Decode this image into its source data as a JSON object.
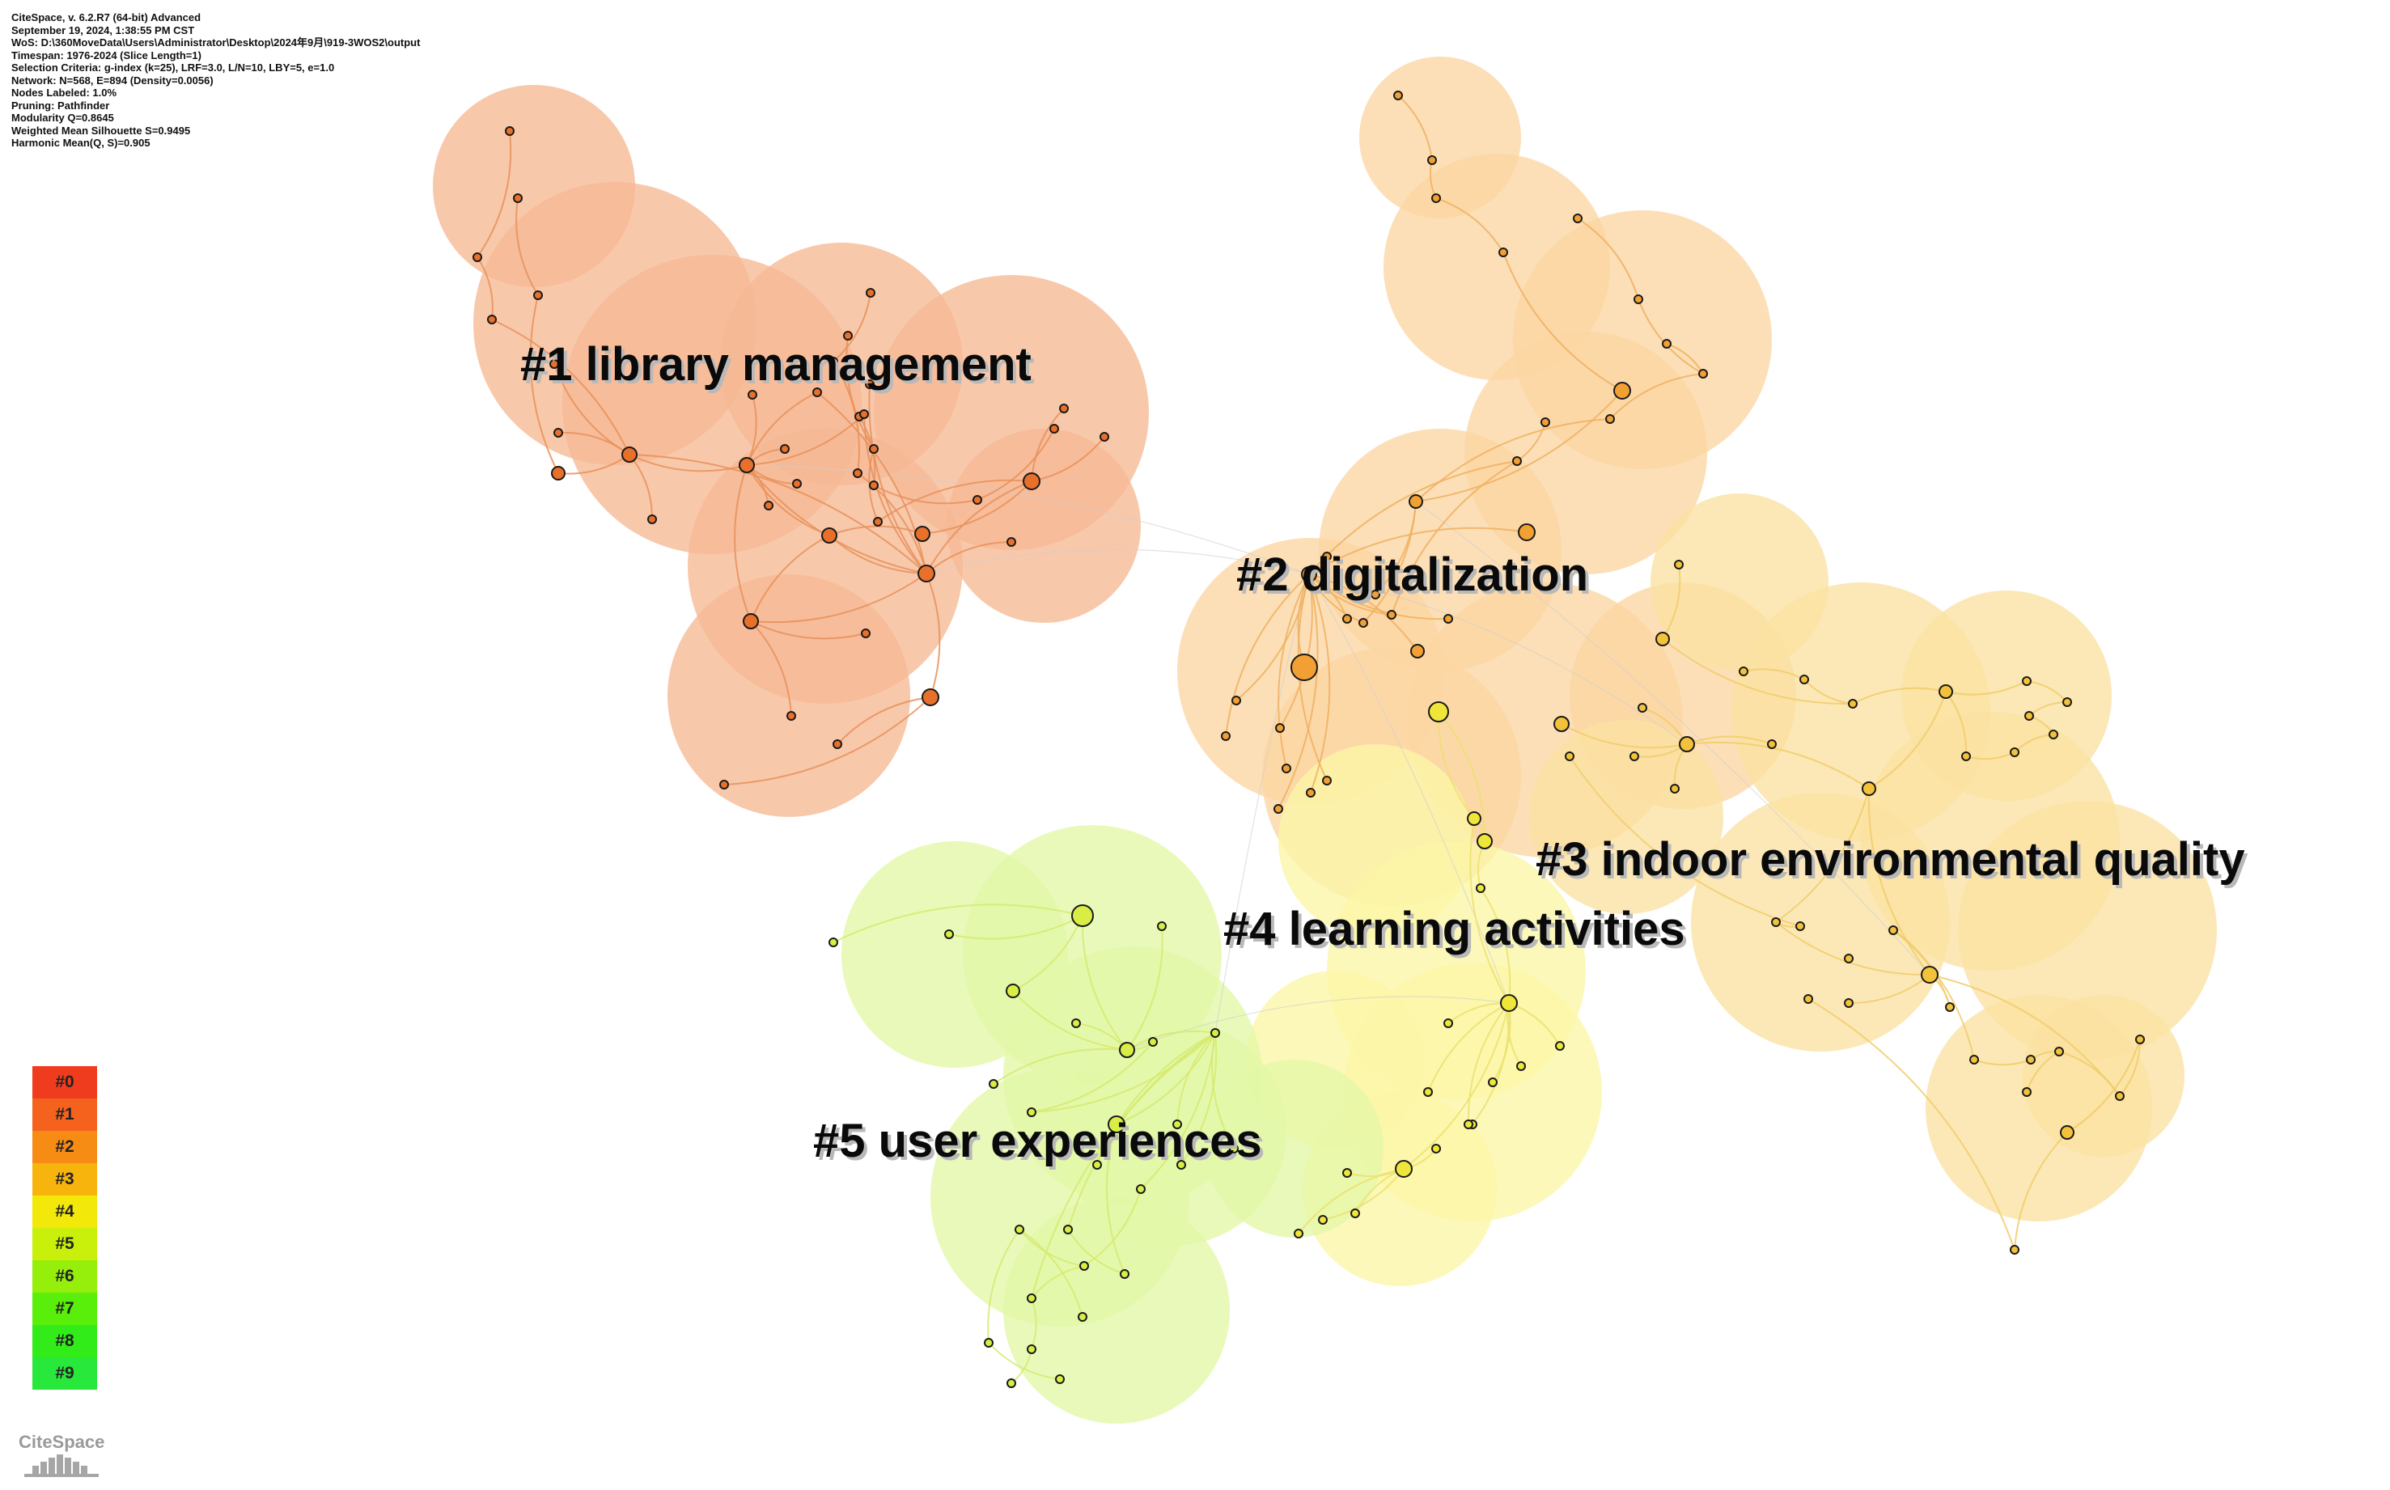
{
  "info_lines": [
    "CiteSpace, v. 6.2.R7 (64-bit) Advanced",
    "September 19, 2024, 1:38:55 PM CST",
    "WoS: D:\\360MoveData\\Users\\Administrator\\Desktop\\2024年9月\\919-3WOS2\\output",
    "Timespan: 1976-2024 (Slice Length=1)",
    "Selection Criteria: g-index (k=25), LRF=3.0, L/N=10, LBY=5, e=1.0",
    "Network: N=568, E=894 (Density=0.0056)",
    "Nodes Labeled: 1.0%",
    "Pruning: Pathfinder",
    "Modularity Q=0.8645",
    "Weighted Mean Silhouette S=0.9495",
    "Harmonic Mean(Q, S)=0.905"
  ],
  "clusters": [
    {
      "id": 1,
      "label": "#1 library management",
      "fill": "#f6b894",
      "node": "#e8702a",
      "edge": "#e8905a"
    },
    {
      "id": 2,
      "label": "#2 digitalization",
      "fill": "#fbd6a3",
      "node": "#f2a033",
      "edge": "#f0b060"
    },
    {
      "id": 3,
      "label": "#3 indoor environmental quality",
      "fill": "#fbe2a2",
      "node": "#f3c23a",
      "edge": "#f0cc6a"
    },
    {
      "id": 4,
      "label": "#4 learning activities",
      "fill": "#fbf6a6",
      "node": "#efe63a",
      "edge": "#ece070"
    },
    {
      "id": 5,
      "label": "#5 user experiences",
      "fill": "#e3f7a6",
      "node": "#d8ee45",
      "edge": "#d6ea70"
    }
  ],
  "legend": [
    {
      "label": "#0",
      "color": "#f03c1e"
    },
    {
      "label": "#1",
      "color": "#f5621e"
    },
    {
      "label": "#2",
      "color": "#f78c14"
    },
    {
      "label": "#3",
      "color": "#f7b40c"
    },
    {
      "label": "#4",
      "color": "#f2e80a"
    },
    {
      "label": "#5",
      "color": "#c8f00a"
    },
    {
      "label": "#6",
      "color": "#96ef0a"
    },
    {
      "label": "#7",
      "color": "#5aef0a"
    },
    {
      "label": "#8",
      "color": "#32ec1a"
    },
    {
      "label": "#9",
      "color": "#28e83c"
    }
  ],
  "logo": {
    "text": "CiteSpace"
  }
}
